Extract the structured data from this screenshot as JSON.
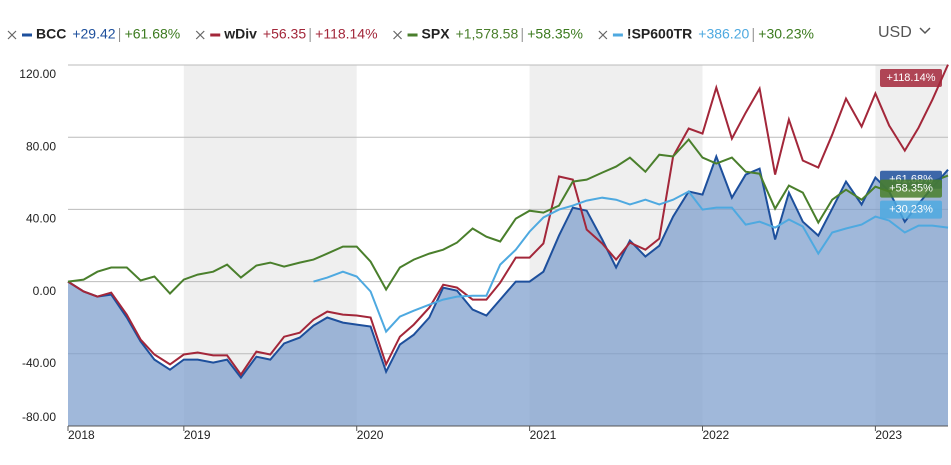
{
  "chart_data": {
    "type": "line",
    "currency": "USD",
    "x": [
      2018.33,
      2018.42,
      2018.5,
      2018.58,
      2018.67,
      2018.75,
      2018.83,
      2018.92,
      2019,
      2019.08,
      2019.17,
      2019.25,
      2019.33,
      2019.42,
      2019.5,
      2019.58,
      2019.67,
      2019.75,
      2019.83,
      2019.92,
      2020,
      2020.08,
      2020.17,
      2020.25,
      2020.33,
      2020.42,
      2020.5,
      2020.58,
      2020.67,
      2020.75,
      2020.83,
      2020.92,
      2021,
      2021.08,
      2021.17,
      2021.25,
      2021.33,
      2021.42,
      2021.5,
      2021.58,
      2021.67,
      2021.75,
      2021.83,
      2021.92,
      2022,
      2022.08,
      2022.17,
      2022.25,
      2022.33,
      2022.42,
      2022.5,
      2022.58,
      2022.67,
      2022.75,
      2022.83,
      2022.92,
      2023,
      2023.08,
      2023.17,
      2023.25,
      2023.33,
      2023.42
    ],
    "xlim": [
      2018.33,
      2023.42
    ],
    "xticks": [
      {
        "value": 2018.33,
        "label": "2018"
      },
      2019,
      2020,
      2021,
      2022,
      2023
    ],
    "bands": [
      [
        2019,
        2020
      ],
      [
        2021,
        2022
      ],
      [
        2023,
        2023.42
      ]
    ],
    "ylim": [
      -80,
      120
    ],
    "yticks": [
      {
        "value": -80,
        "label": "-80.00"
      },
      {
        "value": -40,
        "label": "-40.00"
      },
      {
        "value": 0,
        "label": "0.00"
      },
      {
        "value": 40,
        "label": "40.00"
      },
      {
        "value": 80,
        "label": "80.00"
      },
      {
        "value": 120,
        "label": "120.00"
      }
    ],
    "grid": true,
    "series": [
      {
        "name": "BCC",
        "color": "#1d4f9c",
        "legend_change": "+29.42",
        "legend_pct": "+61.68%",
        "area": true,
        "values": [
          0,
          -5.5,
          -8.3,
          -7.2,
          -19.9,
          -33.2,
          -43.2,
          -48.8,
          -43.2,
          -43.2,
          -44.9,
          -43.2,
          -53.2,
          -41.6,
          -43.2,
          -34.3,
          -31.0,
          -24.4,
          -19.9,
          -22.7,
          -23.8,
          -24.9,
          -49.9,
          -34.9,
          -29.4,
          -19.9,
          -3.3,
          -5.0,
          -15.5,
          -18.8,
          -10.0,
          0,
          0,
          5.5,
          25.5,
          41.0,
          39.3,
          23.3,
          7.8,
          22.7,
          13.9,
          19.9,
          36.0,
          49.9,
          48.2,
          69.3,
          46.5,
          59.3,
          62.6,
          23.3,
          49.3,
          33.2,
          25.5,
          40.4,
          55.4,
          42.7,
          57.6,
          49.9,
          33.2,
          43.2,
          52.1,
          62.0
        ]
      },
      {
        "name": "wDiv",
        "color": "#a3273a",
        "legend_change": "+56.35",
        "legend_pct": "+118.14%",
        "values": [
          0,
          -5.5,
          -8.3,
          -6.1,
          -18.3,
          -32.1,
          -40.4,
          -45.9,
          -40.4,
          -39.3,
          -40.9,
          -40.9,
          -51.5,
          -38.8,
          -40.4,
          -30.5,
          -28.3,
          -21.1,
          -16.6,
          -18.3,
          -18.8,
          -19.9,
          -45.9,
          -30.5,
          -23.8,
          -14.4,
          -1.7,
          -3.3,
          -10.0,
          -10.0,
          -0.6,
          13.3,
          13.3,
          21.1,
          58.2,
          56.5,
          28.8,
          21.1,
          12.2,
          21.6,
          17.7,
          23.8,
          69.3,
          84.8,
          82.0,
          107.5,
          79.2,
          93.6,
          106.9,
          59.3,
          89.8,
          67.1,
          63.2,
          81.4,
          101.4,
          85.9,
          104.2,
          86.4,
          72.6,
          85.3,
          100.8,
          120.2
        ]
      },
      {
        "name": "SPX",
        "color": "#4a7f2c",
        "legend_change": "+1,578.58",
        "legend_pct": "+58.35%",
        "values": [
          0,
          1.1,
          5.5,
          7.8,
          7.8,
          0.6,
          2.8,
          -6.6,
          1.1,
          3.9,
          5.5,
          9.4,
          2.2,
          8.9,
          10.5,
          8.3,
          10.5,
          12.2,
          15.5,
          19.4,
          19.4,
          11.1,
          -4.4,
          7.8,
          12.2,
          15.5,
          17.7,
          21.6,
          29.4,
          24.9,
          22.2,
          34.9,
          39.3,
          38.2,
          42.1,
          55.4,
          56.5,
          60.4,
          63.7,
          68.7,
          60.9,
          70.3,
          69.3,
          78.7,
          68.7,
          65.4,
          68.7,
          60.9,
          59.8,
          40.4,
          53.2,
          49.3,
          32.7,
          45.4,
          50.9,
          45.4,
          52.6,
          49.9,
          53.2,
          51.5,
          55.4,
          58.7
        ]
      },
      {
        "name": "!SP600TR",
        "color": "#4ea9e0",
        "legend_change": "+386.20",
        "legend_pct": "+30.23%",
        "values": [
          null,
          null,
          null,
          null,
          null,
          null,
          null,
          null,
          null,
          null,
          null,
          null,
          null,
          null,
          null,
          null,
          null,
          0,
          2.2,
          5.5,
          2.8,
          -5.5,
          -27.7,
          -19.4,
          -16.1,
          -12.8,
          -10.0,
          -8.3,
          -7.8,
          -7.8,
          9.4,
          17.7,
          27.7,
          35.5,
          39.9,
          42.1,
          44.9,
          46.5,
          45.4,
          42.7,
          45.4,
          42.7,
          45.4,
          49.9,
          39.9,
          41.0,
          41.0,
          31.6,
          33.2,
          29.9,
          34.4,
          30.5,
          15.5,
          27.2,
          29.4,
          31.6,
          36.0,
          33.8,
          27.2,
          31.0,
          31.0,
          29.9
        ]
      }
    ]
  }
}
